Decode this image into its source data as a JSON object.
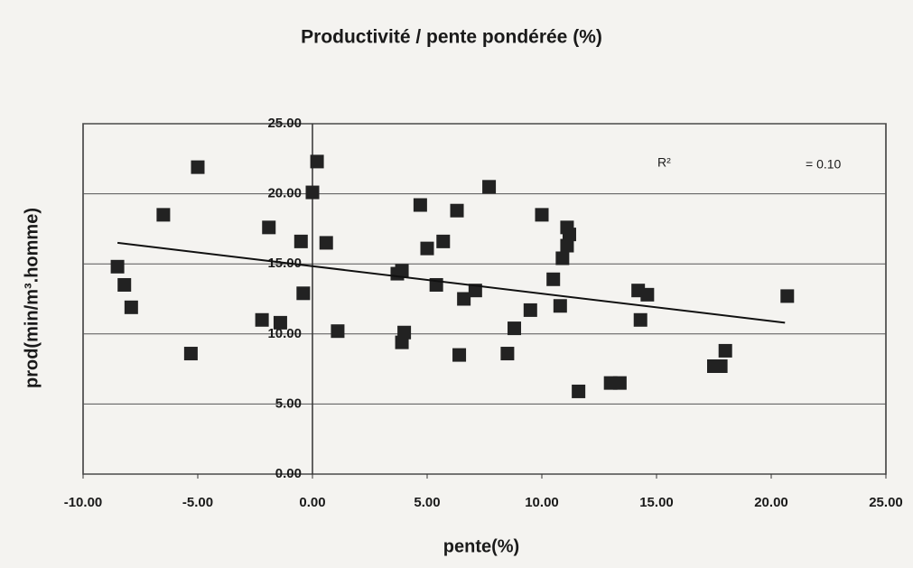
{
  "chart_data": {
    "type": "scatter",
    "title": "Productivité / pente pondérée (%)",
    "x_label": "pente(%)",
    "y_label": "prod(min/m³.homme)",
    "annotations": [
      "R²",
      "= 0.10"
    ],
    "color": "#222222",
    "grid": true,
    "xlim": [
      -10,
      25
    ],
    "ylim": [
      0,
      25
    ],
    "xticks": [
      {
        "value": -10,
        "label": "-10.00"
      },
      {
        "value": -5,
        "label": "-5.00"
      },
      {
        "value": 0,
        "label": "0.00"
      },
      {
        "value": 5,
        "label": "5.00"
      },
      {
        "value": 10,
        "label": "10.00"
      },
      {
        "value": 15,
        "label": "15.00"
      },
      {
        "value": 20,
        "label": "20.00"
      },
      {
        "value": 25,
        "label": "25.00"
      }
    ],
    "yticks": [
      {
        "value": 0,
        "label": "0.00"
      },
      {
        "value": 5,
        "label": "5.00"
      },
      {
        "value": 10,
        "label": "10.00"
      },
      {
        "value": 15,
        "label": "15.00"
      },
      {
        "value": 20,
        "label": "20.00"
      },
      {
        "value": 25,
        "label": "25.00"
      }
    ],
    "x": [
      -8.5,
      -8.2,
      -7.9,
      -6.5,
      -5.3,
      -5.0,
      -2.2,
      -1.9,
      -1.4,
      -0.5,
      -0.4,
      0.0,
      0.2,
      0.6,
      1.1,
      3.7,
      3.9,
      3.9,
      4.0,
      4.7,
      5.0,
      5.4,
      5.7,
      6.3,
      6.4,
      6.6,
      7.1,
      7.7,
      8.5,
      8.8,
      9.5,
      10.0,
      10.5,
      10.8,
      10.9,
      11.1,
      11.1,
      11.2,
      11.6,
      13.0,
      13.4,
      14.2,
      14.3,
      14.6,
      17.5,
      17.8,
      18.0,
      20.7
    ],
    "values": [
      14.8,
      13.5,
      11.9,
      18.5,
      8.6,
      21.9,
      11.0,
      17.6,
      10.8,
      16.6,
      12.9,
      20.1,
      22.3,
      16.5,
      10.2,
      14.3,
      14.5,
      9.4,
      10.1,
      19.2,
      16.1,
      13.5,
      16.6,
      18.8,
      8.5,
      12.5,
      13.1,
      20.5,
      8.6,
      10.4,
      11.7,
      18.5,
      13.9,
      12.0,
      15.4,
      17.6,
      16.3,
      17.1,
      5.9,
      6.5,
      6.5,
      13.1,
      11.0,
      12.8,
      7.7,
      7.7,
      8.8,
      12.7
    ],
    "trendline": {
      "x": [
        -8.5,
        20.6
      ],
      "values": [
        16.5,
        10.8
      ]
    }
  }
}
